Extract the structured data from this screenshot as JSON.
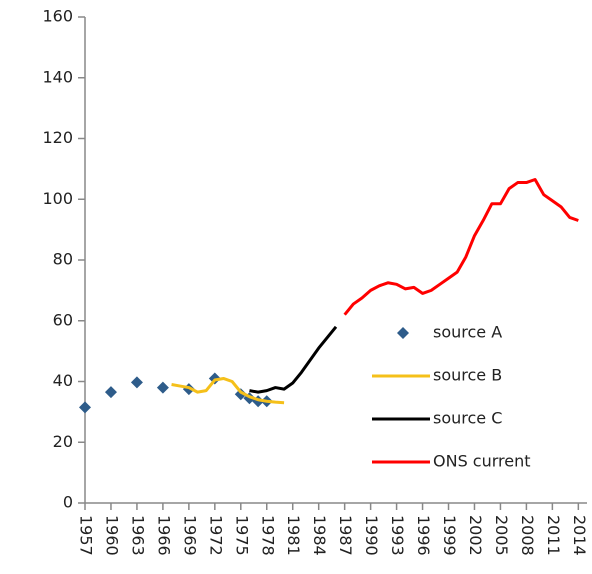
{
  "chart_data": {
    "type": "line",
    "xlim": [
      1957,
      2015
    ],
    "xticks": [
      1957,
      1960,
      1963,
      1966,
      1969,
      1972,
      1975,
      1978,
      1981,
      1984,
      1987,
      1990,
      1993,
      1996,
      1999,
      2002,
      2005,
      2008,
      2011,
      2014
    ],
    "ylim": [
      0,
      160
    ],
    "yticks": [
      0,
      20,
      40,
      60,
      80,
      100,
      120,
      140,
      160
    ],
    "grid": false,
    "legend": "lower right",
    "series": [
      {
        "name": "source A",
        "color": "#2e5c8a",
        "mode": "markers",
        "x": [
          1957,
          1960,
          1963,
          1966,
          1969,
          1972,
          1975,
          1976,
          1977,
          1978
        ],
        "values": [
          31.5,
          36.5,
          39.7,
          38,
          37.5,
          41,
          35.8,
          34.5,
          33.5,
          33.5
        ]
      },
      {
        "name": "source B",
        "color": "#f5c01a",
        "mode": "lines",
        "x": [
          1967,
          1968,
          1969,
          1970,
          1971,
          1972,
          1973,
          1974,
          1975,
          1976,
          1977,
          1978,
          1979,
          1980
        ],
        "values": [
          39,
          38.5,
          38,
          36.5,
          37,
          40.5,
          41,
          40,
          36.5,
          35,
          34,
          33.5,
          33.2,
          33
        ]
      },
      {
        "name": "source C",
        "color": "#000000",
        "mode": "lines",
        "x": [
          1976,
          1977,
          1978,
          1979,
          1980,
          1981,
          1982,
          1983,
          1984,
          1985,
          1986
        ],
        "values": [
          37,
          36.5,
          37,
          38,
          37.5,
          39.5,
          43,
          47,
          51,
          54.5,
          58
        ]
      },
      {
        "name": "ONS current",
        "color": "#ff0000",
        "mode": "lines",
        "x": [
          1987,
          1988,
          1989,
          1990,
          1991,
          1992,
          1993,
          1994,
          1995,
          1996,
          1997,
          1998,
          1999,
          2000,
          2001,
          2002,
          2003,
          2004,
          2005,
          2006,
          2007,
          2008,
          2009,
          2010,
          2011,
          2012,
          2013,
          2014
        ],
        "values": [
          62,
          65.5,
          67.5,
          70,
          71.5,
          72.5,
          72,
          70.5,
          71,
          69,
          70,
          72,
          74,
          76,
          81,
          88,
          93,
          98.5,
          98.5,
          103.5,
          105.5,
          105.5,
          106.5,
          101.5,
          99.5,
          97.5,
          94,
          93
        ]
      }
    ]
  }
}
